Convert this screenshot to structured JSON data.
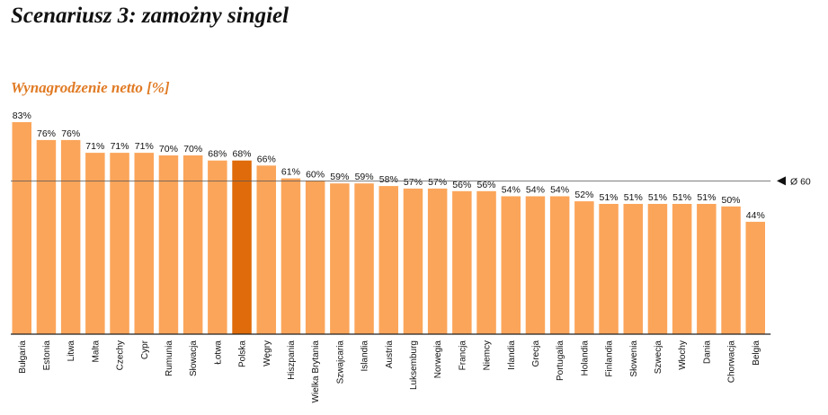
{
  "title": "Scenariusz 3: zamożny singiel",
  "chart_data": {
    "type": "bar",
    "subtitle": "Wynagrodzenie netto [%]",
    "categories": [
      "Bułgaria",
      "Estonia",
      "Litwa",
      "Malta",
      "Czechy",
      "Cypr",
      "Rumunia",
      "Słowacja",
      "Łotwa",
      "Polska",
      "Węgry",
      "Hiszpania",
      "Wielka Brytania",
      "Szwajcaria",
      "Islandia",
      "Austria",
      "Luksemburg",
      "Norwegia",
      "Francja",
      "Niemcy",
      "Irlandia",
      "Grecja",
      "Portugalia",
      "Holandia",
      "Finlandia",
      "Słowenia",
      "Szwecja",
      "Włochy",
      "Dania",
      "Chorwacja",
      "Belgia"
    ],
    "values": [
      83,
      76,
      76,
      71,
      71,
      71,
      70,
      70,
      68,
      68,
      66,
      61,
      60,
      59,
      59,
      58,
      57,
      57,
      56,
      56,
      54,
      54,
      54,
      52,
      51,
      51,
      51,
      51,
      51,
      50,
      44
    ],
    "value_labels": [
      "83%",
      "76%",
      "76%",
      "71%",
      "71%",
      "71%",
      "70%",
      "70%",
      "68%",
      "68%",
      "66%",
      "61%",
      "60%",
      "59%",
      "59%",
      "58%",
      "57%",
      "57%",
      "56%",
      "56%",
      "54%",
      "54%",
      "54%",
      "52%",
      "51%",
      "51%",
      "51%",
      "51%",
      "51%",
      "50%",
      "44%"
    ],
    "highlight": "Polska",
    "average": {
      "value": 60,
      "label": "Ø 60"
    },
    "ylim": [
      0,
      83
    ],
    "xlabel": "",
    "ylabel": "",
    "grid": false,
    "colors": {
      "bar": "#FBA55A",
      "highlight": "#DF6B0A",
      "subtitle": "#E07A23",
      "axis": "#222222",
      "avg_line": "#555555"
    }
  }
}
